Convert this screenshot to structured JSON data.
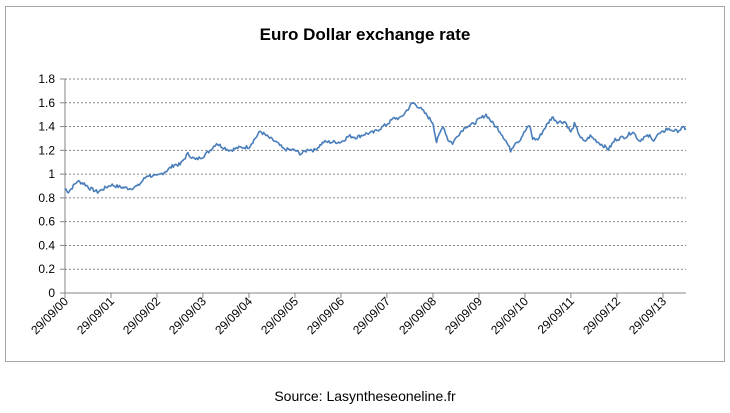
{
  "chart_data": {
    "type": "line",
    "title": "Euro Dollar exchange rate",
    "xlabel": "",
    "ylabel": "",
    "ylim": [
      0,
      1.8
    ],
    "yticks": [
      0,
      0.2,
      0.4,
      0.6,
      0.8,
      1,
      1.2,
      1.4,
      1.6,
      1.8
    ],
    "ytick_labels": [
      "0",
      "0.2",
      "0.4",
      "0.6",
      "0.8",
      "1",
      "1.2",
      "1.4",
      "1.6",
      "1.8"
    ],
    "xtick_labels": [
      "29/09/00",
      "29/09/01",
      "29/09/02",
      "29/09/03",
      "29/09/04",
      "29/09/05",
      "29/09/06",
      "29/09/07",
      "29/09/08",
      "29/09/09",
      "29/09/10",
      "29/09/11",
      "29/09/12",
      "29/09/13"
    ],
    "x_start": "2000-09-29",
    "x_end": "2014-03-31",
    "grid": "horizontal dashed",
    "series": [
      {
        "color": "#4a7ebb",
        "x": [
          "2000-09-29",
          "2000-10-26",
          "2001-01-05",
          "2001-03-01",
          "2001-04-15",
          "2001-06-15",
          "2001-09-29",
          "2001-12-15",
          "2002-03-01",
          "2002-05-01",
          "2002-07-15",
          "2002-09-29",
          "2002-12-15",
          "2003-02-15",
          "2003-04-01",
          "2003-06-01",
          "2003-08-01",
          "2003-09-29",
          "2003-11-15",
          "2004-01-15",
          "2004-03-01",
          "2004-05-01",
          "2004-07-01",
          "2004-09-29",
          "2004-12-28",
          "2005-03-01",
          "2005-05-01",
          "2005-07-01",
          "2005-09-29",
          "2005-11-15",
          "2006-01-15",
          "2006-03-01",
          "2006-05-15",
          "2006-07-15",
          "2006-09-29",
          "2006-12-01",
          "2007-02-01",
          "2007-04-15",
          "2007-06-15",
          "2007-09-29",
          "2007-11-25",
          "2008-01-15",
          "2008-03-15",
          "2008-04-22",
          "2008-06-15",
          "2008-08-15",
          "2008-09-29",
          "2008-10-27",
          "2008-12-18",
          "2009-01-25",
          "2009-03-04",
          "2009-04-15",
          "2009-06-15",
          "2009-08-15",
          "2009-09-29",
          "2009-11-25",
          "2010-01-15",
          "2010-03-15",
          "2010-05-01",
          "2010-06-07",
          "2010-07-15",
          "2010-08-15",
          "2010-09-29",
          "2010-11-04",
          "2010-11-30",
          "2011-01-10",
          "2011-03-01",
          "2011-05-03",
          "2011-06-15",
          "2011-08-15",
          "2011-09-29",
          "2011-10-27",
          "2011-12-15",
          "2012-01-13",
          "2012-03-01",
          "2012-05-01",
          "2012-07-24",
          "2012-09-15",
          "2012-10-15",
          "2012-12-15",
          "2013-02-01",
          "2013-03-25",
          "2013-05-01",
          "2013-06-15",
          "2013-07-08",
          "2013-08-15",
          "2013-09-29",
          "2013-10-25",
          "2013-12-15",
          "2014-01-15",
          "2014-03-15",
          "2014-03-31"
        ],
        "y": [
          0.88,
          0.85,
          0.94,
          0.92,
          0.88,
          0.85,
          0.91,
          0.89,
          0.88,
          0.9,
          0.99,
          0.98,
          1.03,
          1.08,
          1.08,
          1.17,
          1.12,
          1.15,
          1.19,
          1.26,
          1.23,
          1.2,
          1.22,
          1.23,
          1.36,
          1.31,
          1.27,
          1.21,
          1.2,
          1.17,
          1.21,
          1.2,
          1.27,
          1.27,
          1.27,
          1.32,
          1.31,
          1.34,
          1.35,
          1.42,
          1.47,
          1.47,
          1.55,
          1.6,
          1.56,
          1.49,
          1.43,
          1.27,
          1.41,
          1.29,
          1.26,
          1.33,
          1.4,
          1.42,
          1.46,
          1.5,
          1.43,
          1.36,
          1.28,
          1.2,
          1.27,
          1.28,
          1.36,
          1.41,
          1.3,
          1.29,
          1.38,
          1.48,
          1.44,
          1.44,
          1.35,
          1.42,
          1.31,
          1.27,
          1.32,
          1.27,
          1.21,
          1.29,
          1.3,
          1.32,
          1.36,
          1.28,
          1.31,
          1.32,
          1.28,
          1.33,
          1.35,
          1.38,
          1.37,
          1.36,
          1.39,
          1.38
        ]
      }
    ]
  },
  "source": "Source: Lasyntheseoneline.fr"
}
